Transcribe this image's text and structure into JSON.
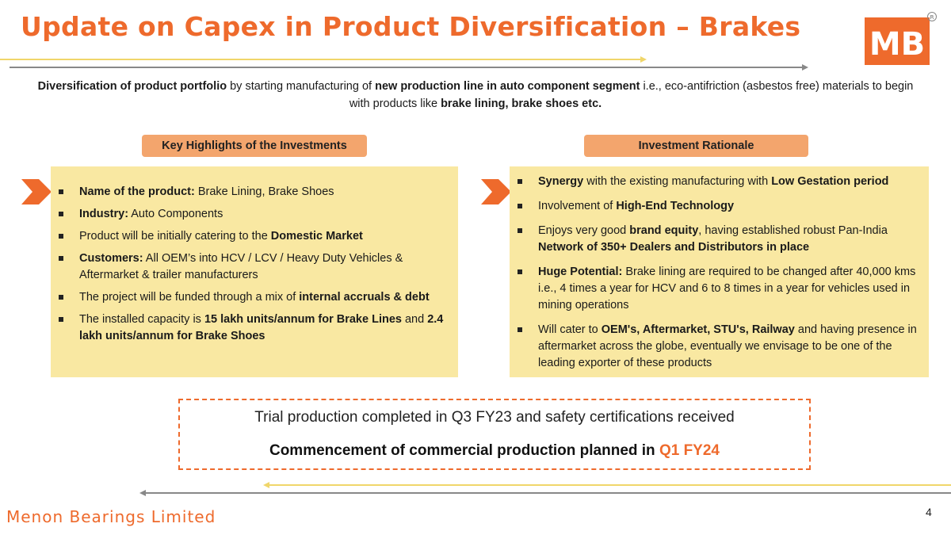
{
  "header": {
    "title": "Update on Capex in Product Diversification – Brakes",
    "logo_alt": "MB",
    "logo_mark": "R"
  },
  "intro": {
    "p1_bold": "Diversification of product portfolio",
    "p2": " by starting manufacturing of ",
    "p3_bold": "new production line in auto component segment",
    "p4": " i.e., eco-antifriction (asbestos free) materials to begin with products like ",
    "p5_bold": "brake lining, brake shoes etc."
  },
  "left": {
    "heading": "Key Highlights of the Investments",
    "items": [
      {
        "b": "Name of the product:",
        "t": " Brake Lining, Brake Shoes"
      },
      {
        "b": "Industry:",
        "t": " Auto Components"
      },
      {
        "pre": "Product will be initially catering to the ",
        "b": "Domestic Market",
        "t": ""
      },
      {
        "b": "Customers:",
        "t": " All OEM’s into HCV / LCV / Heavy Duty Vehicles & Aftermarket & trailer manufacturers"
      },
      {
        "pre": "The project will be funded through a mix of ",
        "b": "internal accruals & debt",
        "t": ""
      },
      {
        "pre": "The installed capacity is ",
        "b": "15 lakh units/annum for Brake Lines",
        "t": " and ",
        "b2": "2.4 lakh units/annum for Brake Shoes"
      }
    ]
  },
  "right": {
    "heading": "Investment Rationale",
    "items": [
      {
        "b": "Synergy",
        "t": " with the existing manufacturing with ",
        "b2": "Low Gestation period"
      },
      {
        "pre": "Involvement of ",
        "b": "High-End Technology",
        "t": ""
      },
      {
        "pre": "Enjoys very good ",
        "b": "brand equity",
        "t": ", having established robust Pan-India ",
        "b2": "Network of 350+ Dealers and Distributors in place"
      },
      {
        "b": "Huge Potential:",
        "t": " Brake lining are required to be changed after 40,000 kms i.e., 4 times a year for HCV and 6 to 8 times in a year for vehicles used in mining  operations"
      },
      {
        "pre": "Will cater to ",
        "b": "OEM's, Aftermarket, STU's, Railway",
        "t": " and having presence in aftermarket across the globe, eventually we envisage to be one of the leading exporter of these products"
      }
    ]
  },
  "status": {
    "line1": "Trial production completed in Q3 FY23 and safety certifications received",
    "line2": "Commencement of commercial production planned in ",
    "line2_highlight": "Q1 FY24"
  },
  "footer": {
    "company": "Menon Bearings Limited",
    "page": "4"
  },
  "colors": {
    "accent": "#ee6a2c",
    "pill": "#f3a56d",
    "panel": "#f9e8a2",
    "line_yellow": "#f0d66a",
    "line_grey": "#888888"
  }
}
